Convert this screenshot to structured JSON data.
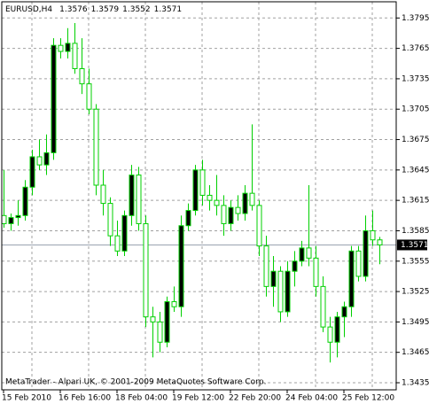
{
  "chart_data": {
    "type": "candlestick",
    "symbol": "EURUSD,H4",
    "footer": "MetaTrader - Alpari UK, © 2001-2009 MetaQuotes Software Corp.",
    "categories": [
      "15 Feb 2010",
      null,
      null,
      null,
      null,
      null,
      null,
      null,
      "16 Feb 16:00",
      null,
      null,
      null,
      null,
      null,
      null,
      null,
      "18 Feb 04:00",
      null,
      null,
      null,
      null,
      null,
      null,
      null,
      "19 Feb 12:00",
      null,
      null,
      null,
      null,
      null,
      null,
      null,
      "22 Feb 20:00",
      null,
      null,
      null,
      null,
      null,
      null,
      null,
      "24 Feb 04:00",
      null,
      null,
      null,
      null,
      null,
      null,
      null,
      "25 Feb 12:00",
      null,
      null,
      null,
      null,
      null
    ],
    "open": [
      1.36,
      1.3592,
      1.3598,
      1.36,
      1.3628,
      1.3658,
      1.365,
      1.3662,
      1.3768,
      1.3762,
      1.377,
      1.3745,
      1.373,
      1.3705,
      1.363,
      1.3612,
      1.358,
      1.3565,
      1.36,
      1.364,
      1.3592,
      1.35,
      1.3495,
      1.3475,
      1.3515,
      1.351,
      1.359,
      1.3605,
      1.3645,
      1.362,
      1.3615,
      1.361,
      1.3592,
      1.3608,
      1.3602,
      1.3622,
      1.361,
      1.357,
      1.353,
      1.3545,
      1.3505,
      1.3545,
      1.3555,
      1.3568,
      1.3558,
      1.353,
      1.349,
      1.3475,
      1.35,
      1.351,
      1.3565,
      1.354,
      1.3585,
      1.3576
    ],
    "high": [
      1.3645,
      1.3602,
      1.3615,
      1.3635,
      1.3665,
      1.3675,
      1.368,
      1.3775,
      1.3775,
      1.3785,
      1.379,
      1.3775,
      1.3745,
      1.371,
      1.3645,
      1.3618,
      1.3595,
      1.3605,
      1.365,
      1.3648,
      1.36,
      1.351,
      1.3505,
      1.352,
      1.353,
      1.36,
      1.3612,
      1.365,
      1.3655,
      1.363,
      1.364,
      1.362,
      1.3615,
      1.362,
      1.363,
      1.369,
      1.3615,
      1.358,
      1.356,
      1.355,
      1.3555,
      1.3565,
      1.3575,
      1.363,
      1.357,
      1.354,
      1.35,
      1.3505,
      1.3515,
      1.357,
      1.357,
      1.36,
      1.3605,
      1.3579
    ],
    "low": [
      1.3588,
      1.3585,
      1.359,
      1.3595,
      1.362,
      1.3645,
      1.364,
      1.3655,
      1.3755,
      1.3755,
      1.374,
      1.372,
      1.37,
      1.362,
      1.36,
      1.357,
      1.356,
      1.356,
      1.359,
      1.3585,
      1.349,
      1.346,
      1.3465,
      1.347,
      1.3505,
      1.35,
      1.3585,
      1.36,
      1.361,
      1.3605,
      1.36,
      1.358,
      1.3585,
      1.3595,
      1.3595,
      1.3605,
      1.356,
      1.352,
      1.351,
      1.3495,
      1.35,
      1.353,
      1.355,
      1.355,
      1.352,
      1.3485,
      1.3455,
      1.346,
      1.348,
      1.35,
      1.3535,
      1.3535,
      1.357,
      1.3552
    ],
    "close": [
      1.3592,
      1.3598,
      1.36,
      1.3628,
      1.3658,
      1.365,
      1.3662,
      1.3768,
      1.3762,
      1.377,
      1.3745,
      1.373,
      1.3705,
      1.363,
      1.3612,
      1.358,
      1.3565,
      1.36,
      1.364,
      1.3592,
      1.35,
      1.3495,
      1.3475,
      1.3515,
      1.351,
      1.359,
      1.3605,
      1.3645,
      1.362,
      1.3615,
      1.361,
      1.3592,
      1.3608,
      1.3602,
      1.3622,
      1.361,
      1.357,
      1.353,
      1.3545,
      1.3505,
      1.3545,
      1.3555,
      1.3568,
      1.3558,
      1.353,
      1.349,
      1.3475,
      1.35,
      1.351,
      1.3565,
      1.354,
      1.3585,
      1.3576,
      1.3571
    ],
    "ylim": [
      1.3428,
      1.3811
    ],
    "yticks": [
      1.3795,
      1.3765,
      1.3735,
      1.3705,
      1.3675,
      1.3645,
      1.3615,
      1.3585,
      1.3555,
      1.3525,
      1.3495,
      1.3465,
      1.3435
    ],
    "grid": true,
    "up_color": "#000000",
    "down_color": "#ffffff",
    "line_color": "#00d000",
    "grid_color": "#a0a0a0"
  }
}
